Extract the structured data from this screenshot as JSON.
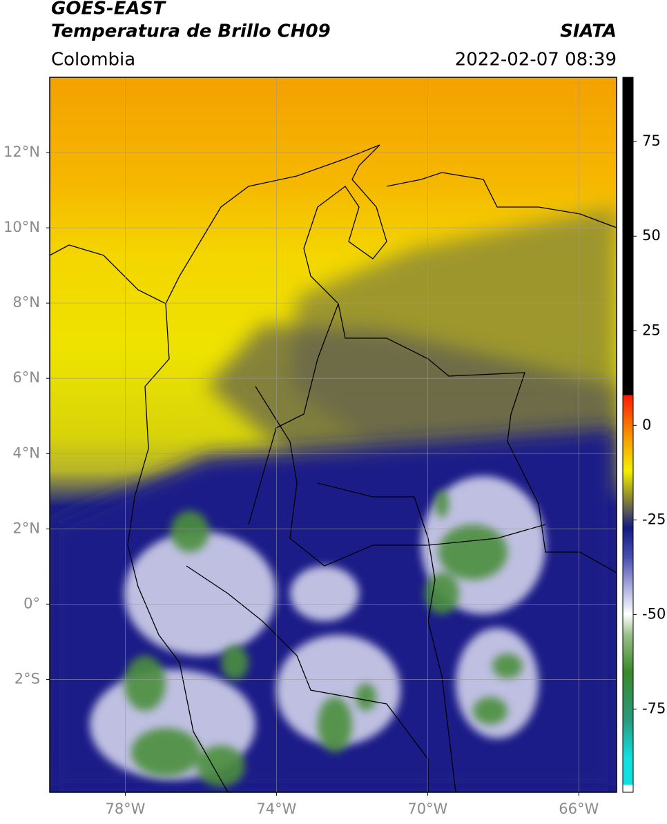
{
  "header": {
    "title": "GOES-EAST",
    "subtitle": "Temperatura de Brillo CH09",
    "source": "SIATA",
    "region": "Colombia",
    "datetime": "2022-02-07 08:39"
  },
  "map": {
    "xlim": [
      -80,
      -65
    ],
    "ylim": [
      -5,
      14
    ],
    "grid": true,
    "xticks": [
      {
        "value": -78,
        "label": "78°W"
      },
      {
        "value": -74,
        "label": "74°W"
      },
      {
        "value": -70,
        "label": "70°W"
      },
      {
        "value": -66,
        "label": "66°W"
      }
    ],
    "yticks": [
      {
        "value": 12,
        "label": "12°N"
      },
      {
        "value": 10,
        "label": "10°N"
      },
      {
        "value": 8,
        "label": "8°N"
      },
      {
        "value": 6,
        "label": "6°N"
      },
      {
        "value": 4,
        "label": "4°N"
      },
      {
        "value": 2,
        "label": "2°N"
      },
      {
        "value": 0,
        "label": "0°"
      },
      {
        "value": -2,
        "label": "2°S"
      }
    ]
  },
  "colorbar": {
    "lim": [
      -97,
      92
    ],
    "ticks": [
      75,
      50,
      25,
      0,
      -25,
      -50,
      -75
    ]
  }
}
